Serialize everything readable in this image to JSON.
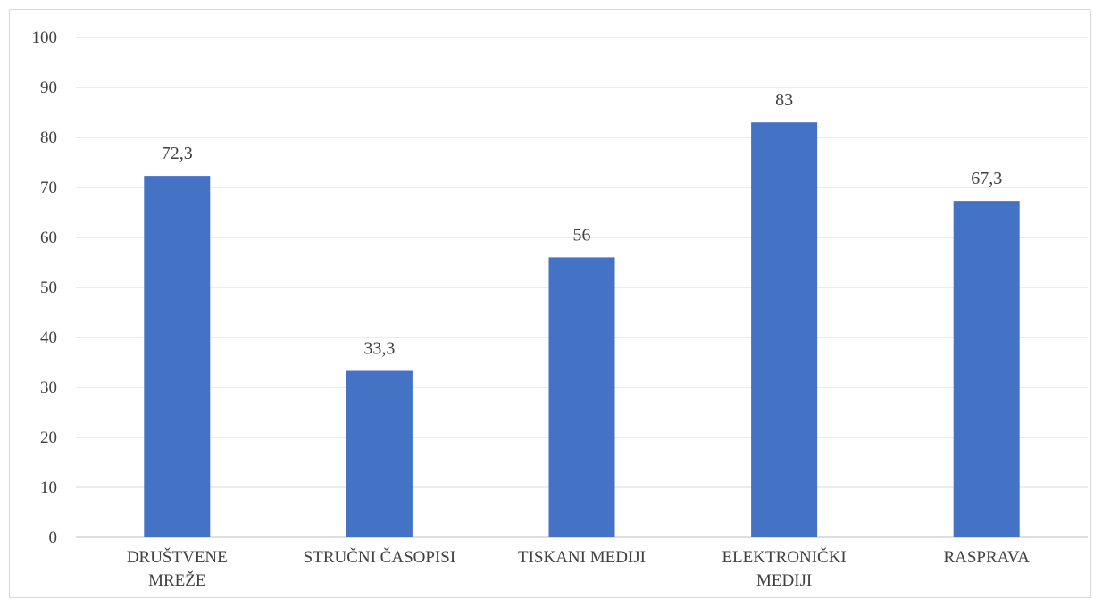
{
  "chart_data": {
    "type": "bar",
    "categories": [
      [
        "DRUŠTVENE",
        "MREŽE"
      ],
      [
        "STRUČNI ČASOPISI"
      ],
      [
        "TISKANI MEDIJI"
      ],
      [
        "ELEKTRONIČKI",
        "MEDIJI"
      ],
      [
        "RASPRAVA"
      ]
    ],
    "values": [
      72.3,
      33.3,
      56,
      83,
      67.3
    ],
    "data_labels": [
      "72,3",
      "33,3",
      "56",
      "83",
      "67,3"
    ],
    "y_ticks": [
      "0",
      "10",
      "20",
      "30",
      "40",
      "50",
      "60",
      "70",
      "80",
      "90",
      "100"
    ],
    "ylim": [
      0,
      100
    ],
    "grid": true,
    "legend": "none",
    "bar_color": "#4472c4",
    "grid_color": "#d9d9d9",
    "text_color": "#404040"
  }
}
